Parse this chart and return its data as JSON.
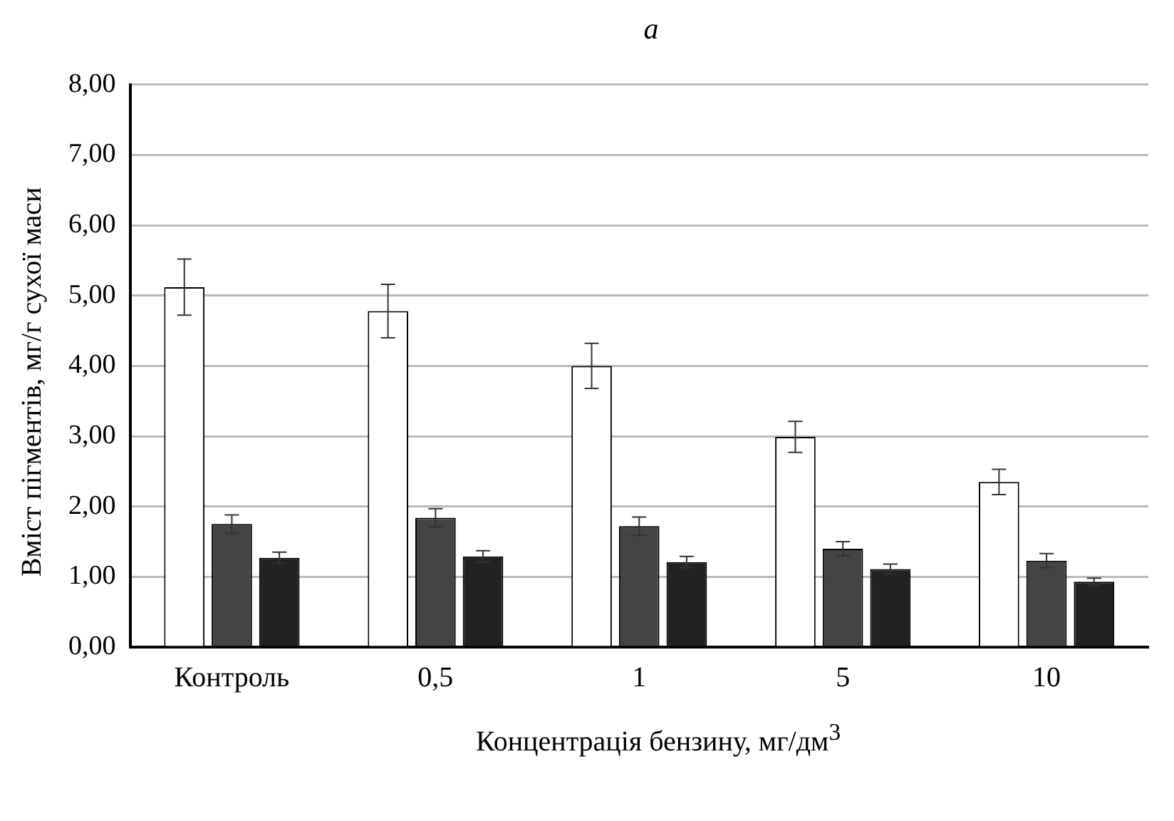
{
  "chart_data": {
    "type": "bar",
    "title": "a",
    "xlabel": "Концентрація бензину, мг/дм$^{3}$",
    "ylabel": "Вміст пігментів, мг/г сухої маси",
    "categories": [
      "Контроль",
      "0,5",
      "1",
      "5",
      "10"
    ],
    "series": [
      {
        "color": "#ffffff",
        "values": [
          5.12,
          4.78,
          4.0,
          2.99,
          2.35
        ],
        "errors": [
          0.4,
          0.38,
          0.32,
          0.22,
          0.18
        ]
      },
      {
        "color": "#444444",
        "values": [
          1.75,
          1.84,
          1.72,
          1.4,
          1.23
        ],
        "errors": [
          0.13,
          0.13,
          0.13,
          0.1,
          0.1
        ]
      },
      {
        "color": "#222222",
        "values": [
          1.27,
          1.29,
          1.21,
          1.11,
          0.93
        ],
        "errors": [
          0.08,
          0.08,
          0.08,
          0.07,
          0.05
        ]
      }
    ],
    "ylim": [
      0,
      8
    ],
    "yticks": [
      {
        "value": 0,
        "label": "0,00"
      },
      {
        "value": 1,
        "label": "1,00"
      },
      {
        "value": 2,
        "label": "2,00"
      },
      {
        "value": 3,
        "label": "3,00"
      },
      {
        "value": 4,
        "label": "4,00"
      },
      {
        "value": 5,
        "label": "5,00"
      },
      {
        "value": 6,
        "label": "6,00"
      },
      {
        "value": 7,
        "label": "7,00"
      },
      {
        "value": 8,
        "label": "8,00"
      }
    ],
    "grid": "y",
    "legend": false
  }
}
